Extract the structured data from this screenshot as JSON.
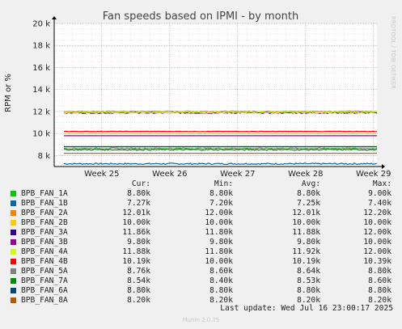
{
  "chart_data": {
    "type": "line",
    "title": "Fan speeds based on IPMI - by month",
    "ylabel": "RPM or %",
    "ylim": [
      7000,
      20000
    ],
    "yticks": [
      8000,
      10000,
      12000,
      14000,
      16000,
      18000,
      20000
    ],
    "ytick_labels": [
      "8 k",
      "10 k",
      "12 k",
      "14 k",
      "16 k",
      "18 k",
      "20 k"
    ],
    "x_range": [
      24.3,
      29.05
    ],
    "xticks": [
      25,
      26,
      27,
      28,
      29
    ],
    "xtick_labels": [
      "Week 25",
      "Week 26",
      "Week 27",
      "Week 28",
      "Week 29"
    ],
    "grid": true,
    "legend_header": {
      "cur": "Cur:",
      "min": "Min:",
      "avg": "Avg:",
      "max": "Max:"
    },
    "series": [
      {
        "name": "BPB_FAN_1A",
        "color": "#00cc00",
        "value": 8800,
        "noise": 0,
        "cur": "8.80k",
        "min": "8.80k",
        "avg": "8.80k",
        "max": "9.00k"
      },
      {
        "name": "BPB_FAN_1B",
        "color": "#0066b3",
        "value": 7250,
        "noise": 60,
        "cur": "7.27k",
        "min": "7.20k",
        "avg": "7.25k",
        "max": "7.40k"
      },
      {
        "name": "BPB_FAN_2A",
        "color": "#ff8000",
        "value": 12010,
        "noise": 40,
        "cur": "12.01k",
        "min": "12.00k",
        "avg": "12.01k",
        "max": "12.20k"
      },
      {
        "name": "BPB_FAN_2B",
        "color": "#ffcc00",
        "value": 10000,
        "noise": 0,
        "cur": "10.00k",
        "min": "10.00k",
        "avg": "10.00k",
        "max": "10.00k"
      },
      {
        "name": "BPB_FAN_3A",
        "color": "#330099",
        "value": 11880,
        "noise": 50,
        "cur": "11.86k",
        "min": "11.80k",
        "avg": "11.88k",
        "max": "12.00k"
      },
      {
        "name": "BPB_FAN_3B",
        "color": "#990099",
        "value": 9800,
        "noise": 0,
        "cur": "9.80k",
        "min": "9.80k",
        "avg": "9.80k",
        "max": "10.00k"
      },
      {
        "name": "BPB_FAN_4A",
        "color": "#ccff00",
        "value": 11920,
        "noise": 60,
        "cur": "11.88k",
        "min": "11.80k",
        "avg": "11.92k",
        "max": "12.00k"
      },
      {
        "name": "BPB_FAN_4B",
        "color": "#ff0000",
        "value": 10190,
        "noise": 20,
        "cur": "10.19k",
        "min": "10.00k",
        "avg": "10.19k",
        "max": "10.39k"
      },
      {
        "name": "BPB_FAN_5A",
        "color": "#808080",
        "value": 8640,
        "noise": 50,
        "cur": "8.76k",
        "min": "8.60k",
        "avg": "8.64k",
        "max": "8.80k"
      },
      {
        "name": "BPB_FAN_7A",
        "color": "#008f00",
        "value": 8530,
        "noise": 60,
        "cur": "8.54k",
        "min": "8.40k",
        "avg": "8.53k",
        "max": "8.60k"
      },
      {
        "name": "BPB_FAN_6A",
        "color": "#00487d",
        "value": 8800,
        "noise": 0,
        "cur": "8.80k",
        "min": "8.80k",
        "avg": "8.80k",
        "max": "8.80k"
      },
      {
        "name": "BPB_FAN_8A",
        "color": "#b35a00",
        "value": 8200,
        "noise": 0,
        "cur": "8.20k",
        "min": "8.20k",
        "avg": "8.20k",
        "max": "8.20k"
      }
    ]
  },
  "side_text": "RRDTOOL / TOBI OETIKER",
  "footer": "Last update: Wed Jul 16 23:00:17 2025",
  "munin": "Munin 2.0.75"
}
